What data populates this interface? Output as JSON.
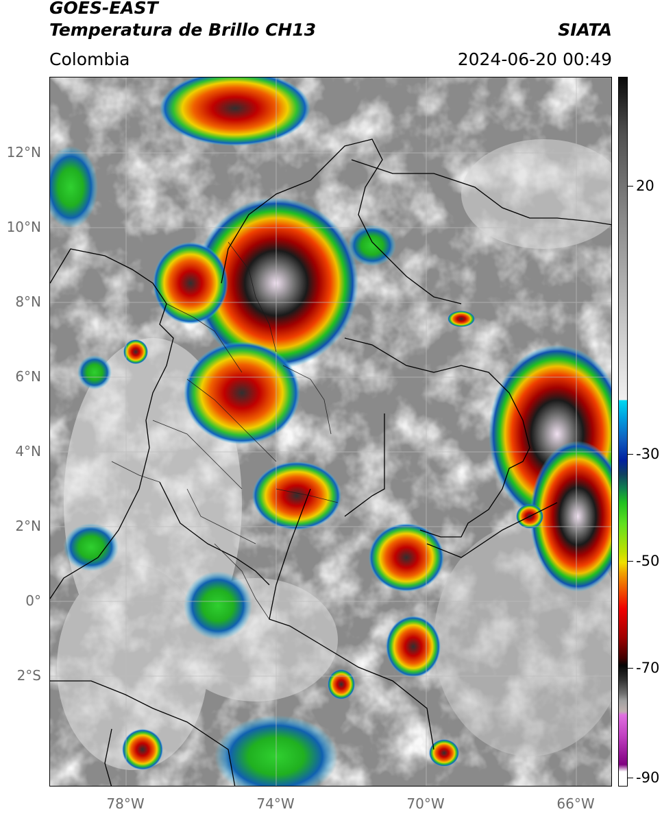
{
  "header": {
    "title_line1": "GOES-EAST",
    "title_line2": "Temperatura de Brillo CH13",
    "brand": "SIATA",
    "region": "Colombia",
    "datetime": "2024-06-20 00:49"
  },
  "axes": {
    "y_labels": [
      "12°N",
      "10°N",
      "8°N",
      "6°N",
      "4°N",
      "2°N",
      "0°",
      "2°S"
    ],
    "x_labels": [
      "78°W",
      "74°W",
      "70°W",
      "66°W"
    ]
  },
  "colorbar": {
    "labels": [
      "20",
      "-30",
      "-50",
      "-70",
      "-90"
    ],
    "colors": {
      "warm_dark": "#1a1a1a",
      "gray_mid": "#8c8c8c",
      "cyan": "#00d0f0",
      "blue": "#1030a0",
      "green": "#20c020",
      "yellow": "#f0e000",
      "orange": "#f07000",
      "red": "#c00000",
      "black": "#050505",
      "magenta": "#c040c0",
      "purple": "#800080"
    }
  }
}
